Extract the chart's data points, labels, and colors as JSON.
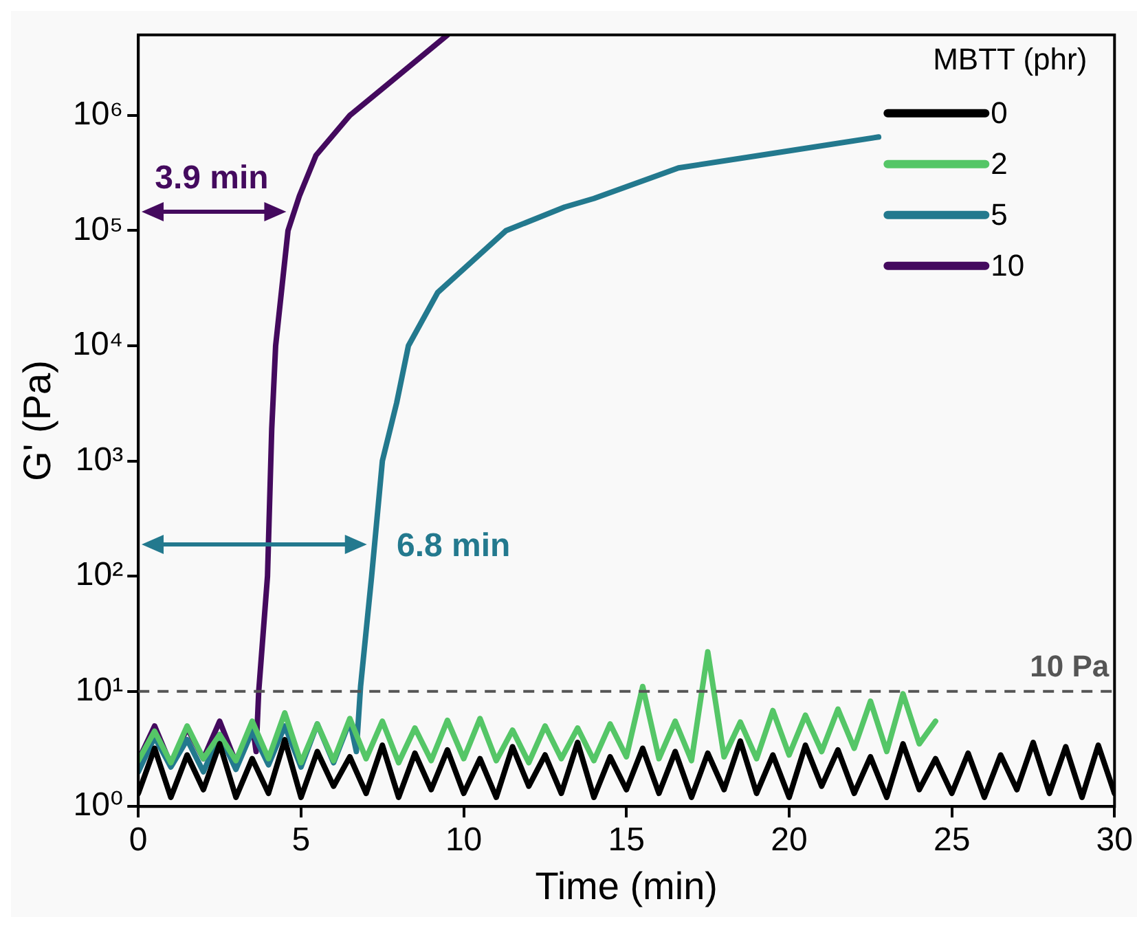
{
  "chart_data": {
    "type": "line",
    "xlabel": "Time (min)",
    "ylabel": "G' (Pa)",
    "legend_title": "MBTT (phr)",
    "xlim": [
      0,
      30
    ],
    "xticks": [
      0,
      5,
      10,
      15,
      20,
      25,
      30
    ],
    "ylim": [
      1,
      5000000
    ],
    "yticks": [
      {
        "value": 1,
        "label": "10⁰"
      },
      {
        "value": 10,
        "label": "10¹"
      },
      {
        "value": 100,
        "label": "10²"
      },
      {
        "value": 1000,
        "label": "10³"
      },
      {
        "value": 10000,
        "label": "10⁴"
      },
      {
        "value": 100000,
        "label": "10⁵"
      },
      {
        "value": 1000000,
        "label": "10⁶"
      }
    ],
    "log": "y",
    "grid": false,
    "legend": "top right",
    "marker": "none",
    "line_style": "solid",
    "series": [
      {
        "name": "0",
        "color": "#000000",
        "x": [
          0,
          0.5,
          1,
          1.5,
          2,
          2.5,
          3,
          3.5,
          4,
          4.5,
          5,
          5.5,
          6,
          6.5,
          7,
          7.5,
          8,
          8.5,
          9,
          9.5,
          10,
          10.5,
          11,
          11.5,
          12,
          12.5,
          13,
          13.5,
          14,
          14.5,
          15,
          15.5,
          16,
          16.5,
          17,
          17.5,
          18,
          18.5,
          19,
          19.5,
          20,
          20.5,
          21,
          21.5,
          22,
          22.5,
          23,
          23.5,
          24,
          24.5,
          25,
          25.5,
          26,
          26.5,
          27,
          27.5,
          28,
          28.5,
          29,
          29.5,
          30
        ],
        "values": [
          1.3,
          3.2,
          1.2,
          2.8,
          1.4,
          3.5,
          1.2,
          2.6,
          1.3,
          3.8,
          1.2,
          3.0,
          1.5,
          2.7,
          1.3,
          3.4,
          1.2,
          2.9,
          1.4,
          3.1,
          1.3,
          2.6,
          1.2,
          3.3,
          1.5,
          2.8,
          1.3,
          3.6,
          1.2,
          2.7,
          1.4,
          3.2,
          1.3,
          3.0,
          1.2,
          2.9,
          1.4,
          3.7,
          1.3,
          2.8,
          1.2,
          3.4,
          1.5,
          3.1,
          1.3,
          2.7,
          1.2,
          3.5,
          1.4,
          2.6,
          1.3,
          2.9,
          1.2,
          2.8,
          1.4,
          3.6,
          1.3,
          3.3,
          1.2,
          3.4,
          1.3
        ]
      },
      {
        "name": "2",
        "color": "#55c667",
        "x": [
          0,
          0.5,
          1,
          1.5,
          2,
          2.5,
          3,
          3.5,
          4,
          4.5,
          5,
          5.5,
          6,
          6.5,
          7,
          7.5,
          8,
          8.5,
          9,
          9.5,
          10,
          10.5,
          11,
          11.5,
          12,
          12.5,
          13,
          13.5,
          14,
          14.5,
          15,
          15.5,
          16,
          16.5,
          17,
          17.5,
          18,
          18.5,
          19,
          19.5,
          20,
          20.5,
          21,
          21.5,
          22,
          22.5,
          23,
          23.5,
          24,
          24.5
        ],
        "values": [
          2.5,
          4.5,
          2.4,
          5,
          2.6,
          4.2,
          2.5,
          5.5,
          2.6,
          6.5,
          2.4,
          5.2,
          2.5,
          5.8,
          2.6,
          5.5,
          2.4,
          4.8,
          2.5,
          5.6,
          2.6,
          5.8,
          2.5,
          4.6,
          2.4,
          5,
          2.6,
          4.8,
          2.5,
          5.2,
          2.7,
          11,
          2.6,
          5.5,
          2.5,
          22,
          2.7,
          5.4,
          2.6,
          6.8,
          2.8,
          6.2,
          3,
          7,
          3.2,
          8.2,
          3,
          9.5,
          3.5,
          5.5
        ]
      },
      {
        "name": "5",
        "color": "#23798e",
        "x": [
          0,
          0.5,
          1,
          1.5,
          2,
          2.5,
          3,
          3.5,
          4,
          4.5,
          5,
          5.5,
          6,
          6.5,
          6.7,
          6.83,
          7.17,
          7.5,
          7.94,
          8.3,
          9.2,
          11.3,
          13.1,
          14,
          16.6,
          19.1,
          22.75
        ],
        "values": [
          2.0,
          4.0,
          2.2,
          3.8,
          2.0,
          4.2,
          2.1,
          4.5,
          2.3,
          5.0,
          2.2,
          5.2,
          2.4,
          5.5,
          3,
          11,
          100,
          1000,
          3200,
          10000,
          29000,
          100000,
          160000,
          190000,
          350000,
          450000,
          650000
        ]
      },
      {
        "name": "10",
        "color": "#440a5e",
        "x": [
          0,
          0.5,
          1,
          1.5,
          2,
          2.5,
          3,
          3.5,
          3.62,
          3.7,
          3.97,
          4.1,
          4.22,
          4.6,
          4.95,
          5.46,
          6.5,
          7.6,
          9.5
        ],
        "values": [
          2.5,
          5.0,
          2.3,
          4.8,
          2.6,
          5.5,
          2.4,
          5.2,
          3,
          10,
          100,
          1900,
          10000,
          100000,
          200000,
          450000,
          1000000,
          1800000,
          5000000
        ]
      }
    ],
    "ref_lines": [
      {
        "axis": "y",
        "value": 10,
        "label": "10 Pa",
        "color": "#555555",
        "line_style": "dashed"
      }
    ],
    "annotations": [
      "3.9 min",
      "6.8 min"
    ]
  }
}
